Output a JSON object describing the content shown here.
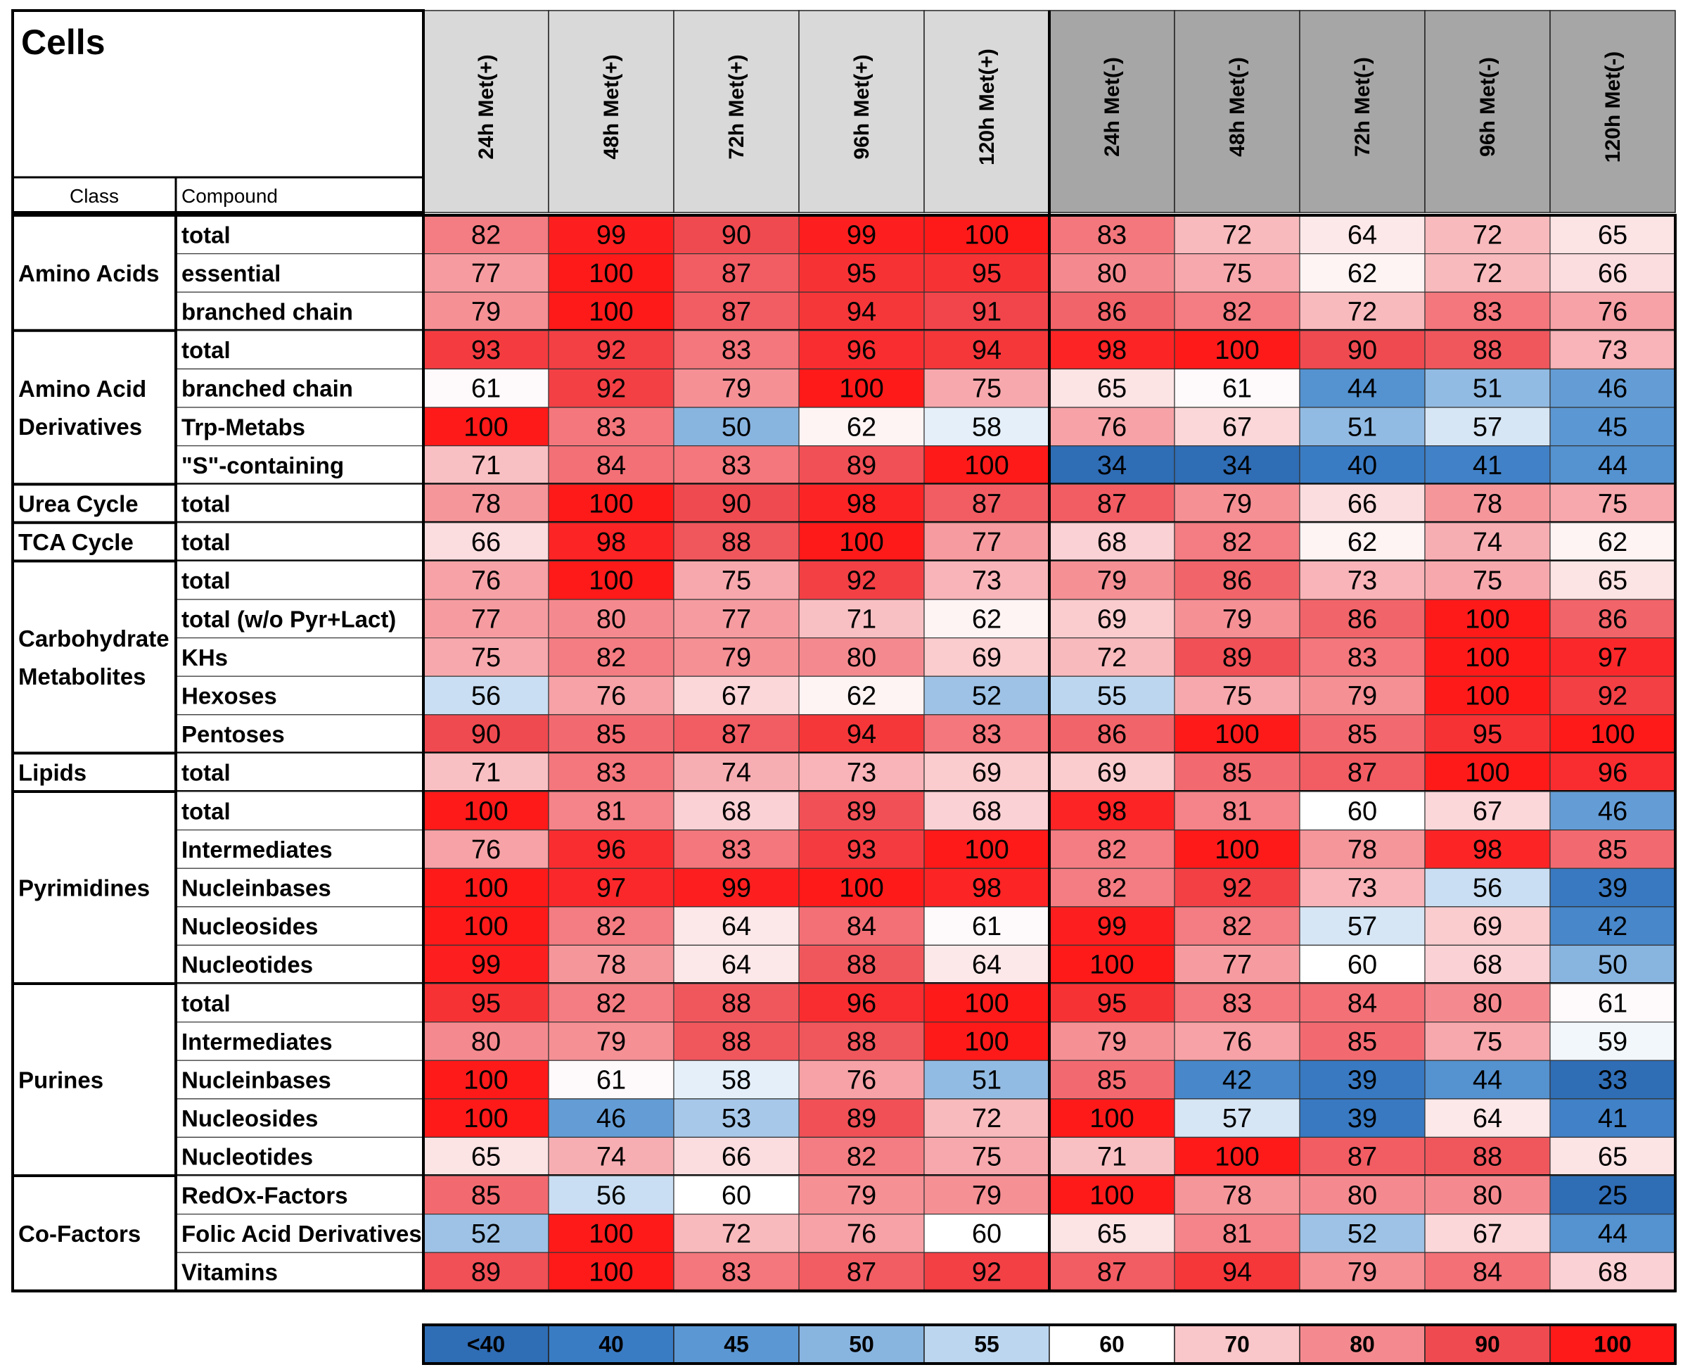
{
  "chart_data": {
    "type": "heatmap",
    "title": "Cells",
    "row_header_labels": {
      "class": "Class",
      "compound": "Compound"
    },
    "columns": [
      "24h Met(+)",
      "48h Met(+)",
      "72h Met(+)",
      "96h Met(+)",
      "120h Met(+)",
      "24h Met(-)",
      "48h Met(-)",
      "72h Met(-)",
      "96h Met(-)",
      "120h Met(-)"
    ],
    "groups": [
      {
        "class": [
          "Amino Acids"
        ],
        "rows": [
          {
            "compound": "total",
            "values": [
              82,
              99,
              90,
              99,
              100,
              83,
              72,
              64,
              72,
              65
            ]
          },
          {
            "compound": "essential",
            "values": [
              77,
              100,
              87,
              95,
              95,
              80,
              75,
              62,
              72,
              66
            ]
          },
          {
            "compound": "branched chain",
            "values": [
              79,
              100,
              87,
              94,
              91,
              86,
              82,
              72,
              83,
              76
            ]
          }
        ]
      },
      {
        "class": [
          "Amino Acid",
          "Derivatives"
        ],
        "rows": [
          {
            "compound": "total",
            "values": [
              93,
              92,
              83,
              96,
              94,
              98,
              100,
              90,
              88,
              73
            ]
          },
          {
            "compound": "branched chain",
            "values": [
              61,
              92,
              79,
              100,
              75,
              65,
              61,
              44,
              51,
              46
            ]
          },
          {
            "compound": "Trp-Metabs",
            "values": [
              100,
              83,
              50,
              62,
              58,
              76,
              67,
              51,
              57,
              45
            ]
          },
          {
            "compound": "\"S\"-containing",
            "values": [
              71,
              84,
              83,
              89,
              100,
              34,
              34,
              40,
              41,
              44
            ]
          }
        ]
      },
      {
        "class": [
          "Urea Cycle"
        ],
        "rows": [
          {
            "compound": "total",
            "values": [
              78,
              100,
              90,
              98,
              87,
              87,
              79,
              66,
              78,
              75
            ]
          }
        ]
      },
      {
        "class": [
          "TCA Cycle"
        ],
        "rows": [
          {
            "compound": "total",
            "values": [
              66,
              98,
              88,
              100,
              77,
              68,
              82,
              62,
              74,
              62
            ]
          }
        ]
      },
      {
        "class": [
          "Carbohydrate",
          "Metabolites"
        ],
        "rows": [
          {
            "compound": "total",
            "values": [
              76,
              100,
              75,
              92,
              73,
              79,
              86,
              73,
              75,
              65
            ]
          },
          {
            "compound": "total (w/o Pyr+Lact)",
            "values": [
              77,
              80,
              77,
              71,
              62,
              69,
              79,
              86,
              100,
              86
            ]
          },
          {
            "compound": "KHs",
            "values": [
              75,
              82,
              79,
              80,
              69,
              72,
              89,
              83,
              100,
              97
            ]
          },
          {
            "compound": "Hexoses",
            "values": [
              56,
              76,
              67,
              62,
              52,
              55,
              75,
              79,
              100,
              92
            ]
          },
          {
            "compound": "Pentoses",
            "values": [
              90,
              85,
              87,
              94,
              83,
              86,
              100,
              85,
              95,
              100
            ]
          }
        ]
      },
      {
        "class": [
          "Lipids"
        ],
        "rows": [
          {
            "compound": "total",
            "values": [
              71,
              83,
              74,
              73,
              69,
              69,
              85,
              87,
              100,
              96
            ]
          }
        ]
      },
      {
        "class": [
          "Pyrimidines"
        ],
        "rows": [
          {
            "compound": "total",
            "values": [
              100,
              81,
              68,
              89,
              68,
              98,
              81,
              60,
              67,
              46
            ]
          },
          {
            "compound": "Intermediates",
            "values": [
              76,
              96,
              83,
              93,
              100,
              82,
              100,
              78,
              98,
              85
            ]
          },
          {
            "compound": "Nucleinbases",
            "values": [
              100,
              97,
              99,
              100,
              98,
              82,
              92,
              73,
              56,
              39
            ]
          },
          {
            "compound": "Nucleosides",
            "values": [
              100,
              82,
              64,
              84,
              61,
              99,
              82,
              57,
              69,
              42
            ]
          },
          {
            "compound": "Nucleotides",
            "values": [
              99,
              78,
              64,
              88,
              64,
              100,
              77,
              60,
              68,
              50
            ]
          }
        ]
      },
      {
        "class": [
          "Purines"
        ],
        "rows": [
          {
            "compound": "total",
            "values": [
              95,
              82,
              88,
              96,
              100,
              95,
              83,
              84,
              80,
              61
            ]
          },
          {
            "compound": "Intermediates",
            "values": [
              80,
              79,
              88,
              88,
              100,
              79,
              76,
              85,
              75,
              59
            ]
          },
          {
            "compound": "Nucleinbases",
            "values": [
              100,
              61,
              58,
              76,
              51,
              85,
              42,
              39,
              44,
              33
            ]
          },
          {
            "compound": "Nucleosides",
            "values": [
              100,
              46,
              53,
              89,
              72,
              100,
              57,
              39,
              64,
              41
            ]
          },
          {
            "compound": "Nucleotides",
            "values": [
              65,
              74,
              66,
              82,
              75,
              71,
              100,
              87,
              88,
              65
            ]
          }
        ]
      },
      {
        "class": [
          "Co-Factors"
        ],
        "rows": [
          {
            "compound": "RedOx-Factors",
            "values": [
              85,
              56,
              60,
              79,
              79,
              100,
              78,
              80,
              80,
              25
            ]
          },
          {
            "compound": "Folic Acid Derivatives",
            "values": [
              52,
              100,
              72,
              76,
              60,
              65,
              81,
              52,
              67,
              44
            ]
          },
          {
            "compound": "Vitamins",
            "values": [
              89,
              100,
              83,
              87,
              92,
              87,
              94,
              79,
              84,
              68
            ]
          }
        ]
      }
    ],
    "legend": [
      {
        "label": "<40",
        "value": 35,
        "color": "#2f6db5"
      },
      {
        "label": "40",
        "value": 40,
        "color": "#3a7cc4"
      },
      {
        "label": "45",
        "value": 45,
        "color": "#5b97d3"
      },
      {
        "label": "50",
        "value": 50,
        "color": "#88b4e0"
      },
      {
        "label": "55",
        "value": 55,
        "color": "#bcd6ef"
      },
      {
        "label": "60",
        "value": 60,
        "color": "#ffffff"
      },
      {
        "label": "70",
        "value": 70,
        "color": "#f9c6c9"
      },
      {
        "label": "80",
        "value": 80,
        "color": "#f48a8f"
      },
      {
        "label": "90",
        "value": 90,
        "color": "#ef4a50"
      },
      {
        "label": "100",
        "value": 100,
        "color": "#ff1a1a"
      }
    ],
    "header_colors": {
      "met_plus": "#d9d9d9",
      "met_minus": "#a6a6a6"
    }
  }
}
